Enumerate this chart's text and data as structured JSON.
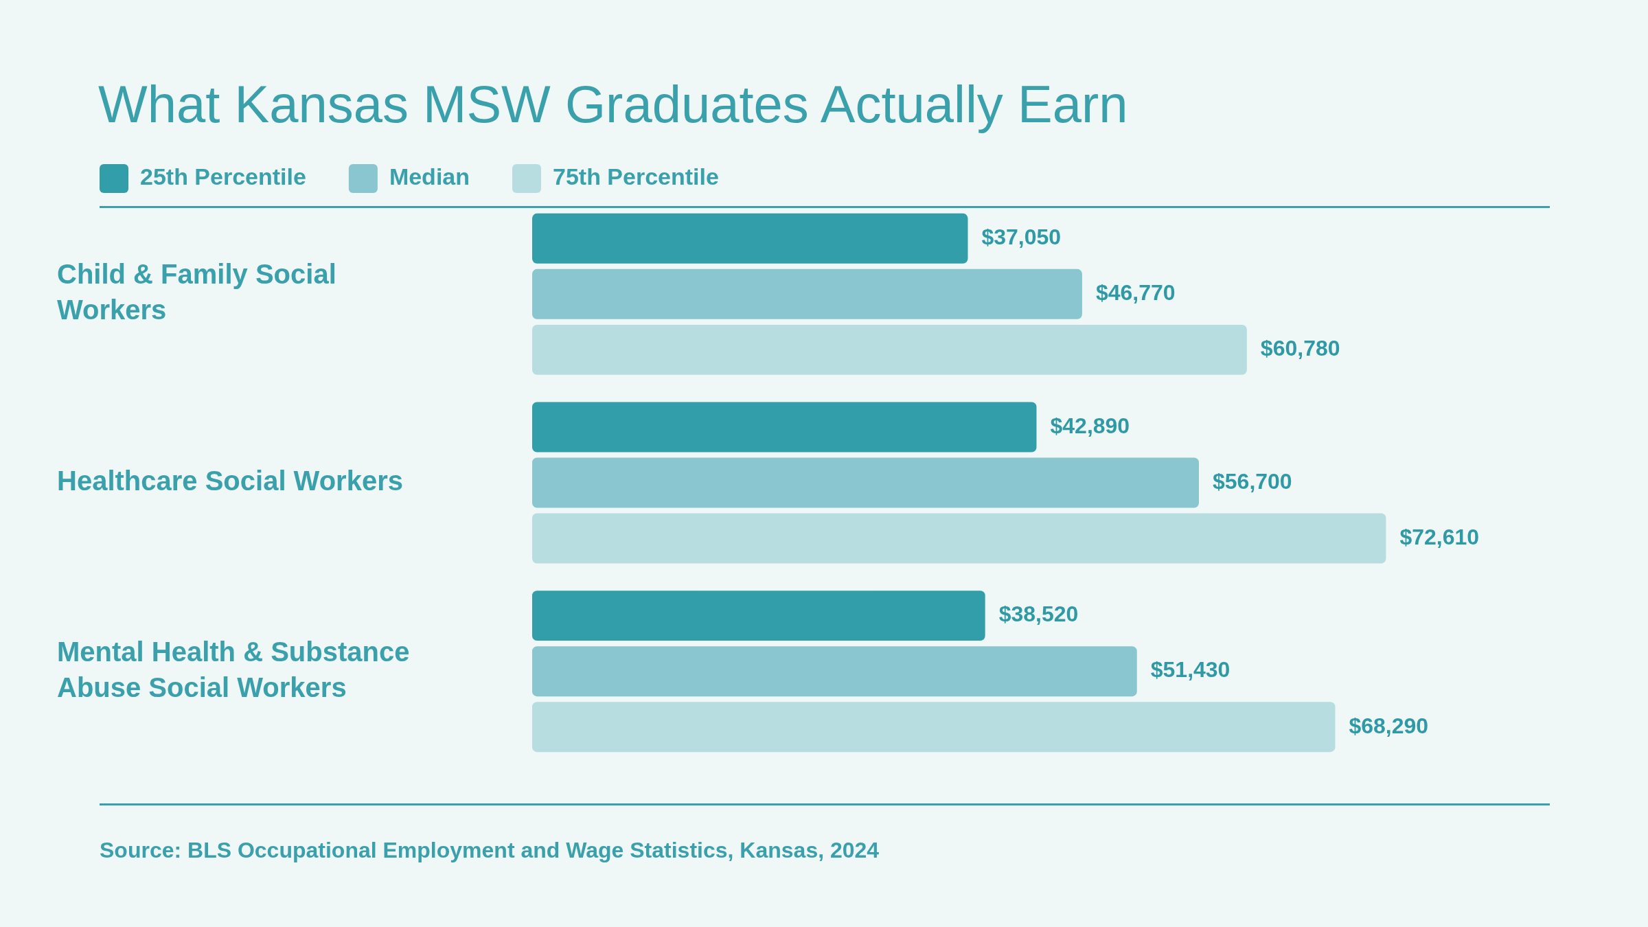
{
  "chart_data": {
    "type": "bar",
    "orientation": "horizontal",
    "title": "What Kansas MSW Graduates Actually Earn",
    "legend": "top left",
    "categories": [
      "Child & Family Social Workers",
      "Healthcare Social Workers",
      "Mental Health & Substance Abuse Social Workers"
    ],
    "series": [
      {
        "name": "25th Percentile",
        "color": "#319ea9",
        "values": [
          37050,
          42890,
          38520
        ],
        "value_labels": [
          "$37,050",
          "$42,890",
          "$38,520"
        ]
      },
      {
        "name": "Median",
        "color": "#89c6cf",
        "values": [
          46770,
          56700,
          51430
        ],
        "value_labels": [
          "$46,770",
          "$56,700",
          "$51,430"
        ]
      },
      {
        "name": "75th Percentile",
        "color": "#b7dde1",
        "values": [
          60780,
          72610,
          68290
        ],
        "value_labels": [
          "$60,780",
          "$72,610",
          "$68,290"
        ]
      }
    ],
    "annotations": [
      "Source: BLS Occupational Employment and Wage Statistics, Kansas, 2024"
    ]
  }
}
